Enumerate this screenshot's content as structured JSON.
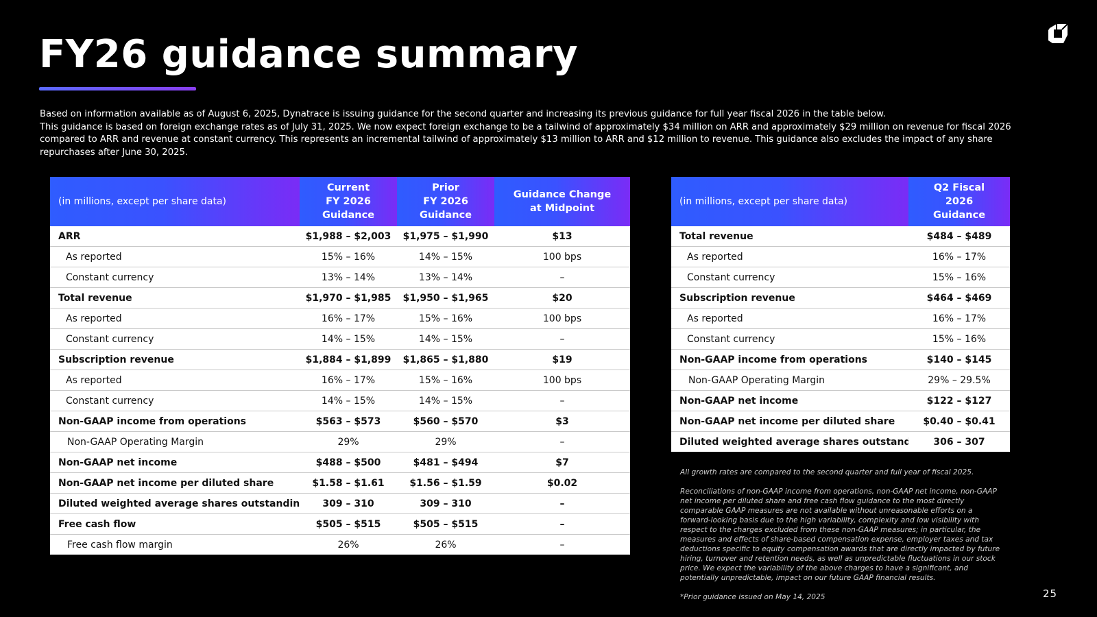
{
  "slide": {
    "title": "FY26 guidance summary",
    "page_number": "25",
    "accent_colors": [
      "#5b6bff",
      "#8a3ff0"
    ],
    "logo_icon": "dynatrace-logo-icon"
  },
  "intro": {
    "line1": "Based on information available as of August 6, 2025, Dynatrace is issuing guidance for the second quarter and increasing its previous guidance for full year fiscal 2026 in the table below.",
    "line2": "This guidance is based on foreign exchange rates as of July 31, 2025. We now expect foreign exchange to be a tailwind of approximately $34 million on ARR and approximately $29 million on revenue for fiscal 2026 compared to ARR and revenue at constant currency. This represents an incremental tailwind of approximately $13 million to ARR and $12 million to revenue. This guidance also excludes the impact of any share repurchases after June 30, 2025."
  },
  "fy_table": {
    "header": {
      "label": "(in millions, except per share data)",
      "current": [
        "Current",
        "FY 2026",
        "Guidance"
      ],
      "prior": [
        "Prior",
        "FY 2026",
        "Guidance"
      ],
      "change": [
        "Guidance Change",
        "at Midpoint"
      ]
    },
    "rows": [
      {
        "label": "ARR",
        "current": "$1,988 – $2,003",
        "prior": "$1,975 – $1,990",
        "change": "$13",
        "style": "major"
      },
      {
        "label": "As reported",
        "current": "15% – 16%",
        "prior": "14% – 15%",
        "change": "100 bps",
        "style": "sub"
      },
      {
        "label": "Constant currency",
        "current": "13% – 14%",
        "prior": "13% – 14%",
        "change": "–",
        "style": "sub"
      },
      {
        "label": "Total revenue",
        "current": "$1,970 – $1,985",
        "prior": "$1,950 – $1,965",
        "change": "$20",
        "style": "major"
      },
      {
        "label": "As reported",
        "current": "16% – 17%",
        "prior": "15% – 16%",
        "change": "100 bps",
        "style": "sub"
      },
      {
        "label": "Constant currency",
        "current": "14% – 15%",
        "prior": "14% – 15%",
        "change": "–",
        "style": "sub"
      },
      {
        "label": "Subscription revenue",
        "current": "$1,884 – $1,899",
        "prior": "$1,865 – $1,880",
        "change": "$19",
        "style": "major"
      },
      {
        "label": "As reported",
        "current": "16% – 17%",
        "prior": "15% – 16%",
        "change": "100 bps",
        "style": "sub"
      },
      {
        "label": "Constant currency",
        "current": "14% – 15%",
        "prior": "14% – 15%",
        "change": "–",
        "style": "sub"
      },
      {
        "label": "Non-GAAP income from operations",
        "current": "$563 – $573",
        "prior": "$560 – $570",
        "change": "$3",
        "style": "major"
      },
      {
        "label": "Non-GAAP Operating Margin",
        "current": "29%",
        "prior": "29%",
        "change": "–",
        "style": "sub2"
      },
      {
        "label": "Non-GAAP net income",
        "current": "$488 – $500",
        "prior": "$481 – $494",
        "change": "$7",
        "style": "major"
      },
      {
        "label": "Non-GAAP net income per diluted share",
        "current": "$1.58 – $1.61",
        "prior": "$1.56 – $1.59",
        "change": "$0.02",
        "style": "major"
      },
      {
        "label": "Diluted weighted average shares outstanding",
        "current": "309 – 310",
        "prior": "309 – 310",
        "change": "–",
        "style": "major"
      },
      {
        "label": "Free cash flow",
        "current": "$505 – $515",
        "prior": "$505 – $515",
        "change": "–",
        "style": "major"
      },
      {
        "label": "Free cash flow margin",
        "current": "26%",
        "prior": "26%",
        "change": "–",
        "style": "sub2"
      }
    ]
  },
  "q2_table": {
    "header": {
      "label": "(in millions, except per share data)",
      "q2": [
        "Q2 Fiscal",
        "2026",
        "Guidance"
      ]
    },
    "rows": [
      {
        "label": "Total revenue",
        "value": "$484 – $489",
        "style": "major"
      },
      {
        "label": "As reported",
        "value": "16% – 17%",
        "style": "sub"
      },
      {
        "label": "Constant currency",
        "value": "15% – 16%",
        "style": "sub"
      },
      {
        "label": "Subscription revenue",
        "value": "$464 – $469",
        "style": "major"
      },
      {
        "label": "As reported",
        "value": "16% – 17%",
        "style": "sub"
      },
      {
        "label": "Constant currency",
        "value": "15% – 16%",
        "style": "sub"
      },
      {
        "label": "Non-GAAP income from operations",
        "value": "$140 – $145",
        "style": "major"
      },
      {
        "label": "Non-GAAP Operating Margin",
        "value": "29% – 29.5%",
        "style": "sub2"
      },
      {
        "label": "Non-GAAP net income",
        "value": "$122 – $127",
        "style": "major"
      },
      {
        "label": "Non-GAAP net income per diluted share",
        "value": "$0.40 – $0.41",
        "style": "major"
      },
      {
        "label": "Diluted weighted average shares outstanding",
        "value": "306 – 307",
        "style": "major"
      }
    ]
  },
  "notes": {
    "growth": "All growth rates are compared to the second quarter and full year of fiscal 2025.",
    "reconciliation": "Reconciliations of non-GAAP income from operations, non-GAAP net income, non-GAAP net income per diluted share and free cash flow guidance to the most directly comparable GAAP measures are not available without unreasonable efforts on a forward-looking basis due to the high variability, complexity and low visibility with respect to the charges excluded from these non-GAAP measures; in particular, the measures and effects of share-based compensation expense, employer taxes and tax deductions specific to equity compensation awards that are directly impacted by future hiring, turnover and retention needs, as well as unpredictable fluctuations in our stock price. We expect the variability of the above charges to have a significant, and potentially unpredictable, impact on our future GAAP financial results.",
    "prior": "*Prior guidance issued on May 14, 2025"
  }
}
